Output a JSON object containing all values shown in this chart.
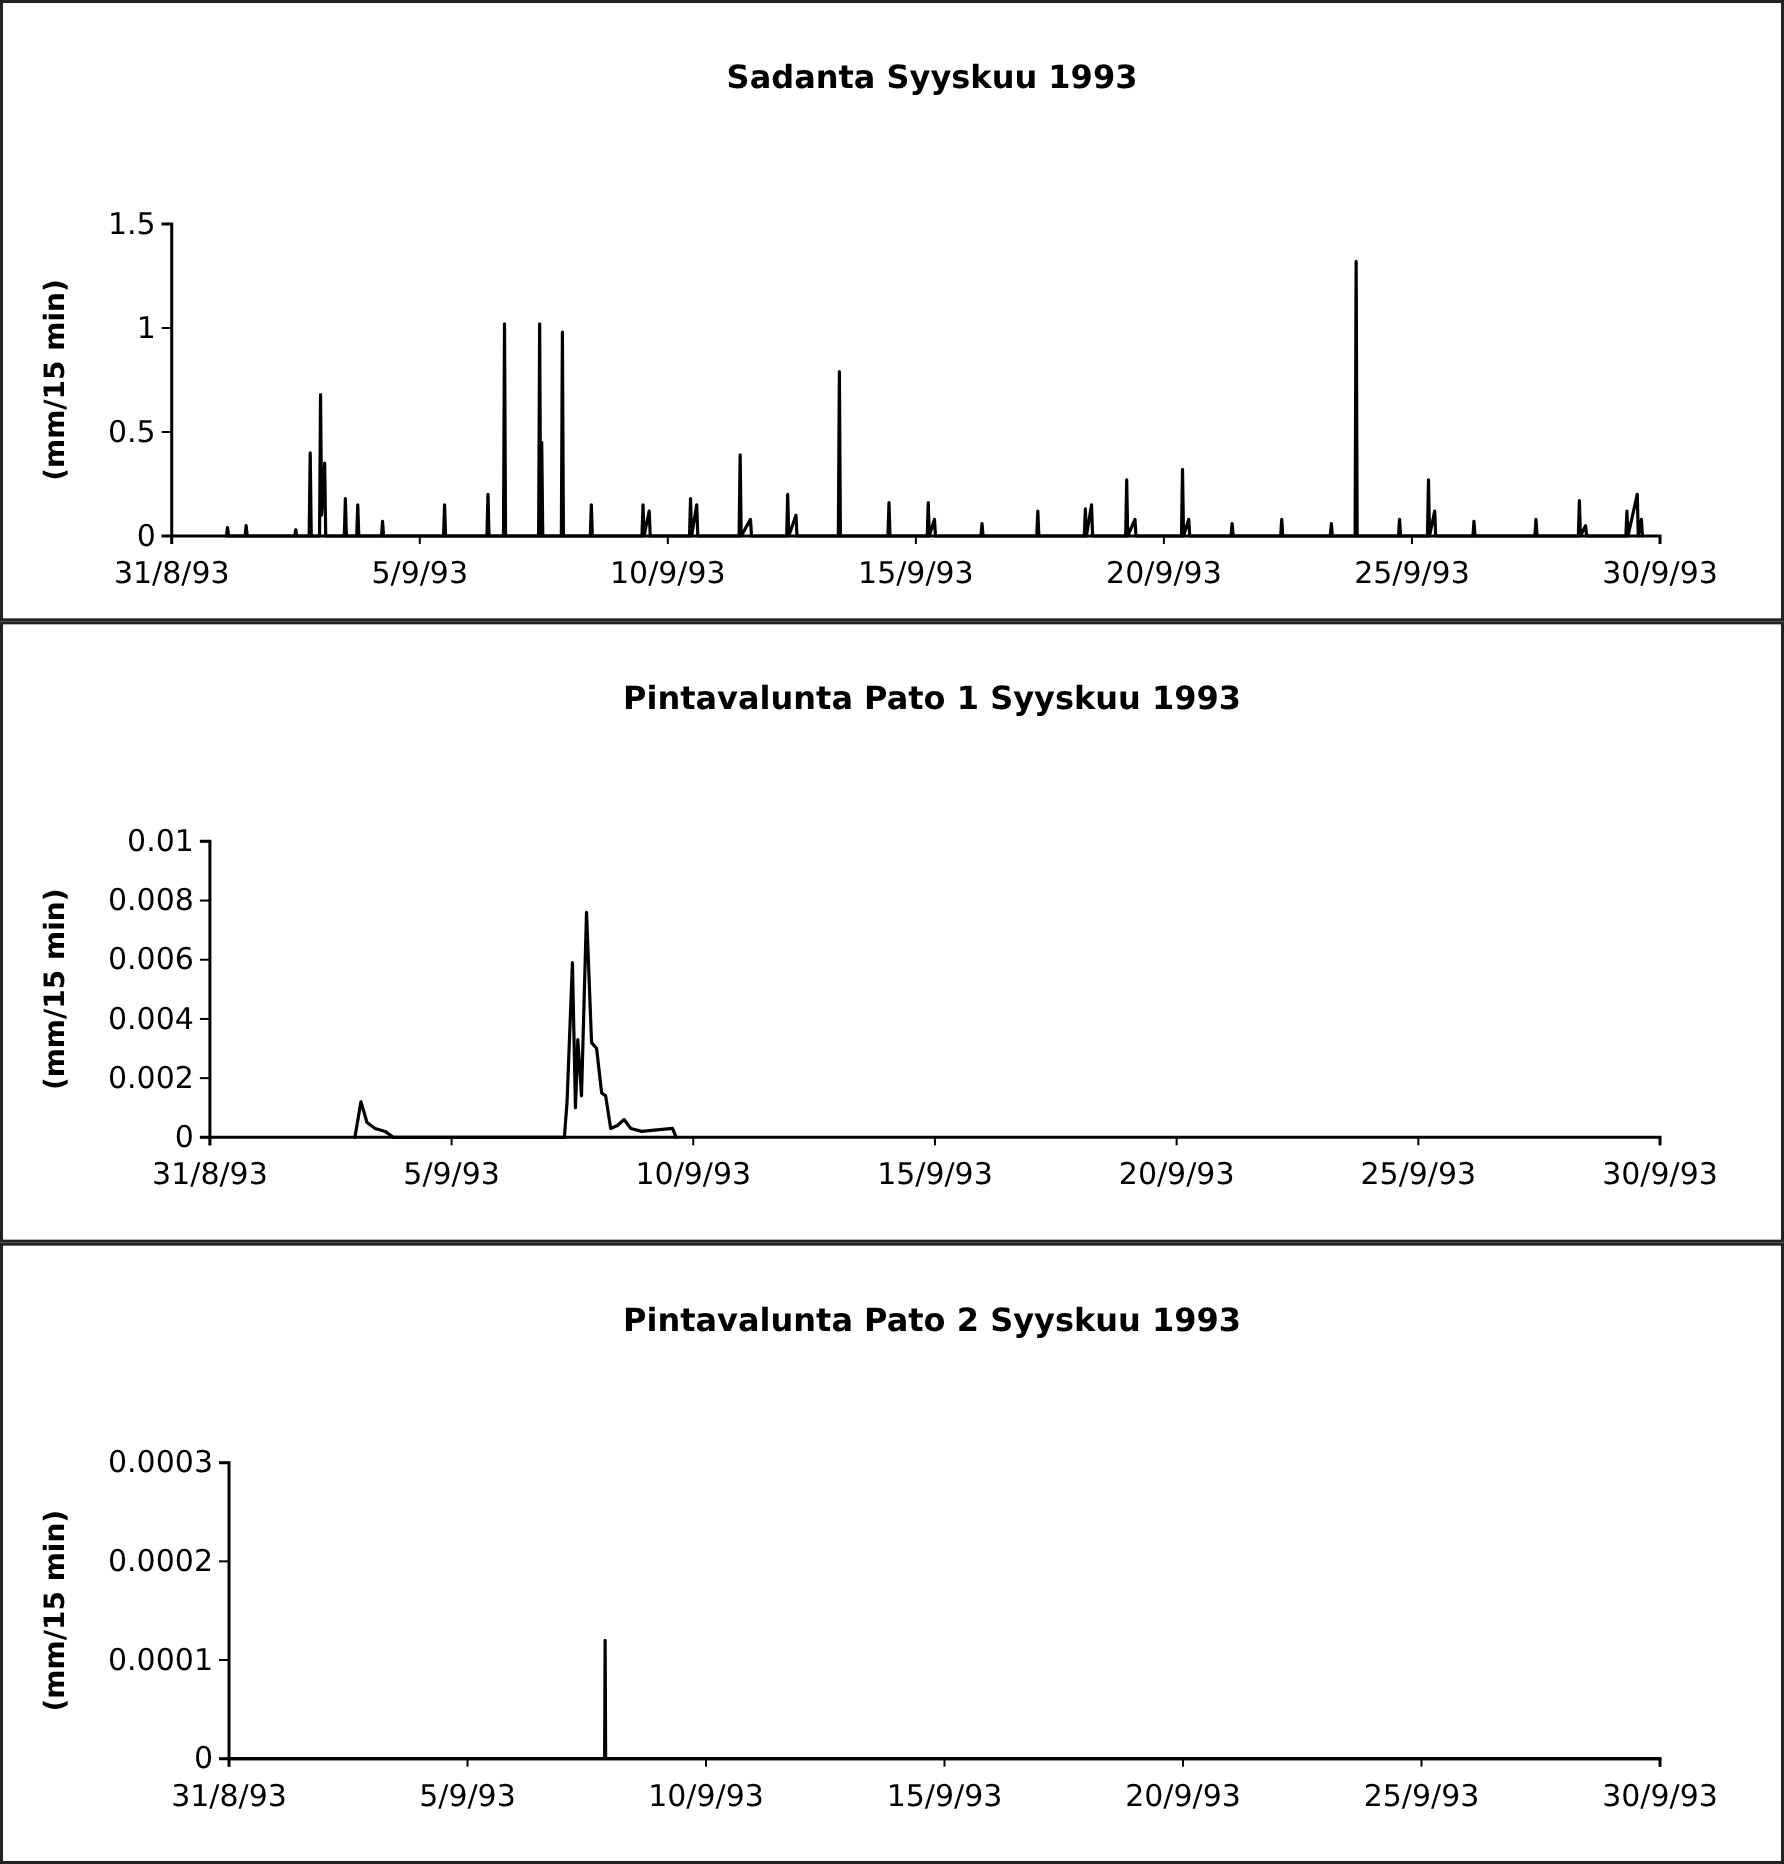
{
  "chart_data": [
    {
      "type": "line",
      "title": "Sadanta Syyskuu 1993",
      "ylabel": "(mm/15 min)",
      "xlim": [
        "1993-08-31",
        "1993-09-30"
      ],
      "xticks": [
        {
          "value": "1993-08-31",
          "label": "31/8/93"
        },
        {
          "value": "1993-09-05",
          "label": "5/9/93"
        },
        {
          "value": "1993-09-10",
          "label": "10/9/93"
        },
        {
          "value": "1993-09-15",
          "label": "15/9/93"
        },
        {
          "value": "1993-09-20",
          "label": "20/9/93"
        },
        {
          "value": "1993-09-25",
          "label": "25/9/93"
        },
        {
          "value": "1993-09-30",
          "label": "30/9/93"
        }
      ],
      "ylim": [
        0,
        1.5
      ],
      "yticks": [
        0,
        0.5,
        1,
        1.5
      ],
      "marker": "none",
      "line_style": "solid",
      "series": [
        {
          "color": "#000000",
          "x": [
            "1993-09-01T02:30",
            "1993-09-01T03:00",
            "1993-09-01T03:30",
            "1993-09-01T11:30",
            "1993-09-01T12:00",
            "1993-09-01T12:30",
            "1993-09-02T11:30",
            "1993-09-02T12:00",
            "1993-09-02T12:30",
            "1993-09-02T18:30",
            "1993-09-02T19:00",
            "1993-09-02T19:30",
            "1993-09-02T23:30",
            "1993-09-03T00:00",
            "1993-09-03T00:30",
            "1993-09-03T02:00",
            "1993-09-03T02:30",
            "1993-09-03T11:30",
            "1993-09-03T12:00",
            "1993-09-03T12:30",
            "1993-09-03T17:30",
            "1993-09-03T18:00",
            "1993-09-03T18:30",
            "1993-09-04T05:30",
            "1993-09-04T06:00",
            "1993-09-04T06:30",
            "1993-09-05T11:30",
            "1993-09-05T12:00",
            "1993-09-05T12:30",
            "1993-09-06T08:30",
            "1993-09-06T09:00",
            "1993-09-06T09:30",
            "1993-09-06T16:30",
            "1993-09-06T17:00",
            "1993-09-06T17:30",
            "1993-09-07T09:30",
            "1993-09-07T10:00",
            "1993-09-07T10:30",
            "1993-09-07T11:00",
            "1993-09-07T11:30",
            "1993-09-07T20:30",
            "1993-09-07T21:00",
            "1993-09-07T21:30",
            "1993-09-08T10:30",
            "1993-09-08T11:00",
            "1993-09-08T11:30",
            "1993-09-09T11:30",
            "1993-09-09T12:00",
            "1993-09-09T12:30",
            "1993-09-09T15:00",
            "1993-09-09T15:30",
            "1993-09-10T10:30",
            "1993-09-10T11:00",
            "1993-09-10T11:30",
            "1993-09-10T14:00",
            "1993-09-10T14:30",
            "1993-09-11T10:30",
            "1993-09-11T11:00",
            "1993-09-11T11:30",
            "1993-09-11T16:00",
            "1993-09-11T16:30",
            "1993-09-12T09:30",
            "1993-09-12T10:00",
            "1993-09-12T10:30",
            "1993-09-12T14:00",
            "1993-09-12T14:30",
            "1993-09-13T10:30",
            "1993-09-13T11:00",
            "1993-09-13T11:30",
            "1993-09-14T10:30",
            "1993-09-14T11:00",
            "1993-09-14T11:30",
            "1993-09-15T05:30",
            "1993-09-15T06:00",
            "1993-09-15T06:30",
            "1993-09-15T09:00",
            "1993-09-15T09:30",
            "1993-09-16T07:30",
            "1993-09-16T08:00",
            "1993-09-16T08:30",
            "1993-09-17T10:30",
            "1993-09-17T11:00",
            "1993-09-17T11:30",
            "1993-09-18T09:30",
            "1993-09-18T10:00",
            "1993-09-18T10:30",
            "1993-09-18T13:00",
            "1993-09-18T13:30",
            "1993-09-19T05:30",
            "1993-09-19T06:00",
            "1993-09-19T06:30",
            "1993-09-19T10:00",
            "1993-09-19T10:30",
            "1993-09-20T08:30",
            "1993-09-20T09:00",
            "1993-09-20T09:30",
            "1993-09-20T12:00",
            "1993-09-20T12:30",
            "1993-09-21T08:30",
            "1993-09-21T09:00",
            "1993-09-21T09:30",
            "1993-09-22T08:30",
            "1993-09-22T09:00",
            "1993-09-22T09:30",
            "1993-09-23T08:30",
            "1993-09-23T09:00",
            "1993-09-23T09:30",
            "1993-09-23T20:30",
            "1993-09-23T21:00",
            "1993-09-23T21:30",
            "1993-09-24T17:30",
            "1993-09-24T18:00",
            "1993-09-24T18:30",
            "1993-09-25T07:30",
            "1993-09-25T08:00",
            "1993-09-25T08:30",
            "1993-09-25T11:00",
            "1993-09-25T11:30",
            "1993-09-26T05:30",
            "1993-09-26T06:00",
            "1993-09-26T06:30",
            "1993-09-27T11:30",
            "1993-09-27T12:00",
            "1993-09-27T12:30",
            "1993-09-28T08:30",
            "1993-09-28T09:00",
            "1993-09-28T09:30",
            "1993-09-28T12:00",
            "1993-09-28T12:30",
            "1993-09-29T07:30",
            "1993-09-29T08:00",
            "1993-09-29T08:30",
            "1993-09-29T13:00",
            "1993-09-29T13:30",
            "1993-09-29T15:00",
            "1993-09-29T15:30"
          ],
          "values": [
            0,
            0.04,
            0,
            0,
            0.05,
            0,
            0,
            0.03,
            0,
            0,
            0.4,
            0,
            0,
            0.68,
            0.1,
            0.35,
            0,
            0,
            0.18,
            0,
            0,
            0.15,
            0,
            0,
            0.07,
            0,
            0,
            0.15,
            0,
            0,
            0.2,
            0,
            0,
            1.02,
            0,
            0,
            1.02,
            0,
            0.45,
            0,
            0,
            0.98,
            0,
            0,
            0.15,
            0,
            0,
            0.15,
            0,
            0.12,
            0,
            0,
            0.18,
            0,
            0.15,
            0,
            0,
            0.39,
            0,
            0.08,
            0,
            0,
            0.2,
            0,
            0.1,
            0,
            0,
            0.79,
            0,
            0,
            0.16,
            0,
            0,
            0.16,
            0,
            0.08,
            0,
            0,
            0.06,
            0,
            0,
            0.12,
            0,
            0,
            0.13,
            0,
            0.15,
            0,
            0,
            0.27,
            0,
            0.08,
            0,
            0,
            0.32,
            0,
            0.08,
            0,
            0,
            0.06,
            0,
            0,
            0.08,
            0,
            0,
            0.06,
            0,
            0,
            1.32,
            0,
            0,
            0.08,
            0,
            0,
            0.27,
            0,
            0.12,
            0,
            0,
            0.07,
            0,
            0,
            0.08,
            0,
            0,
            0.17,
            0,
            0.05,
            0,
            0,
            0.12,
            0,
            0.2,
            0,
            0.08,
            0
          ]
        }
      ]
    },
    {
      "type": "line",
      "title": "Pintavalunta Pato 1 Syyskuu 1993",
      "ylabel": "(mm/15 min)",
      "xlim": [
        "1993-08-31",
        "1993-09-30"
      ],
      "xticks": [
        {
          "value": "1993-08-31",
          "label": "31/8/93"
        },
        {
          "value": "1993-09-05",
          "label": "5/9/93"
        },
        {
          "value": "1993-09-10",
          "label": "10/9/93"
        },
        {
          "value": "1993-09-15",
          "label": "15/9/93"
        },
        {
          "value": "1993-09-20",
          "label": "20/9/93"
        },
        {
          "value": "1993-09-25",
          "label": "25/9/93"
        },
        {
          "value": "1993-09-30",
          "label": "30/9/93"
        }
      ],
      "ylim": [
        0,
        0.01
      ],
      "yticks": [
        0,
        0.002,
        0.004,
        0.006,
        0.008,
        0.01
      ],
      "marker": "none",
      "line_style": "solid",
      "series": [
        {
          "color": "#000000",
          "x": [
            "1993-09-03T00:00",
            "1993-09-03T03:00",
            "1993-09-03T06:00",
            "1993-09-03T10:00",
            "1993-09-03T15:00",
            "1993-09-03T19:00",
            "1993-09-07T08:00",
            "1993-09-07T09:20",
            "1993-09-07T12:00",
            "1993-09-07T13:30",
            "1993-09-07T14:40",
            "1993-09-07T16:30",
            "1993-09-07T19:00",
            "1993-09-07T21:30",
            "1993-09-08T00:00",
            "1993-09-08T02:30",
            "1993-09-08T04:30",
            "1993-09-08T07:00",
            "1993-09-08T10:20",
            "1993-09-08T13:40",
            "1993-09-08T17:00",
            "1993-09-08T22:20",
            "1993-09-09T13:40",
            "1993-09-09T15:30"
          ],
          "values": [
            0,
            0.0012,
            0.0005,
            0.0003,
            0.0002,
            0,
            0,
            0.0012,
            0.0059,
            0.001,
            0.0033,
            0.0014,
            0.0076,
            0.0032,
            0.003,
            0.0015,
            0.0014,
            0.0003,
            0.0004,
            0.0006,
            0.0003,
            0.0002,
            0.0003,
            0
          ]
        }
      ]
    },
    {
      "type": "line",
      "title": "Pintavalunta Pato 2 Syyskuu 1993",
      "ylabel": "(mm/15 min)",
      "xlim": [
        "1993-08-31",
        "1993-09-30"
      ],
      "xticks": [
        {
          "value": "1993-08-31",
          "label": "31/8/93"
        },
        {
          "value": "1993-09-05",
          "label": "5/9/93"
        },
        {
          "value": "1993-09-10",
          "label": "10/9/93"
        },
        {
          "value": "1993-09-15",
          "label": "15/9/93"
        },
        {
          "value": "1993-09-20",
          "label": "20/9/93"
        },
        {
          "value": "1993-09-25",
          "label": "25/9/93"
        },
        {
          "value": "1993-09-30",
          "label": "30/9/93"
        }
      ],
      "ylim": [
        0,
        0.0003
      ],
      "yticks": [
        0,
        0.0001,
        0.0002,
        0.0003
      ],
      "marker": "none",
      "line_style": "solid",
      "series": [
        {
          "color": "#000000",
          "x": [
            "1993-08-31T00:00",
            "1993-09-07T21:00",
            "1993-09-07T21:15",
            "1993-09-07T21:30",
            "1993-09-30T00:00"
          ],
          "values": [
            0,
            0,
            0.00012,
            0,
            0
          ]
        }
      ]
    }
  ]
}
